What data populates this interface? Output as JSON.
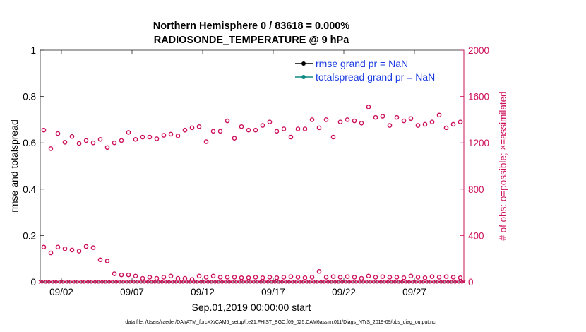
{
  "chart_data": {
    "type": "scatter",
    "title_lines": [
      "Northern Hemisphere 0 / 83618 = 0.000%",
      "RADIOSONDE_TEMPERATURE @ 9 hPa"
    ],
    "xlabel": "Sep.01,2019 00:00:00 start",
    "ylabel_left": "rmse and totalspread",
    "ylabel_right": "# of obs: o=possible; ×=assimilated",
    "footer": "data file: /Users/raeder/DAI/ATM_forcXX/CAM6_setup/f.e21.FHIST_BGC.f09_025.CAM6assim.011/Diags_NTrS_2019-09/obs_diag_output.nc",
    "ylim_left": [
      0,
      1
    ],
    "ylim_right": [
      0,
      2000
    ],
    "xlim": [
      0.5,
      30.5
    ],
    "left_ticks": [
      {
        "v": 0,
        "label": "0"
      },
      {
        "v": 0.2,
        "label": "0.2"
      },
      {
        "v": 0.4,
        "label": "0.4"
      },
      {
        "v": 0.6,
        "label": "0.6"
      },
      {
        "v": 0.8,
        "label": "0.8"
      },
      {
        "v": 1,
        "label": "1"
      }
    ],
    "right_ticks": [
      {
        "v": 0,
        "label": "0"
      },
      {
        "v": 400,
        "label": "400"
      },
      {
        "v": 800,
        "label": "800"
      },
      {
        "v": 1200,
        "label": "1200"
      },
      {
        "v": 1600,
        "label": "1600"
      },
      {
        "v": 2000,
        "label": "2000"
      }
    ],
    "x_ticks": [
      {
        "v": 2,
        "label": "09/02"
      },
      {
        "v": 7,
        "label": "09/07"
      },
      {
        "v": 12,
        "label": "09/12"
      },
      {
        "v": 17,
        "label": "09/17"
      },
      {
        "v": 22,
        "label": "09/22"
      },
      {
        "v": 27,
        "label": "09/27"
      }
    ],
    "legend": [
      {
        "label": "rmse grand pr = NaN",
        "color": "#000000"
      },
      {
        "label": "totalspread grand pr = NaN",
        "color": "#118a84"
      }
    ],
    "obs_color": "#cc0f5a",
    "x": [
      0.75,
      1.25,
      1.75,
      2.25,
      2.75,
      3.25,
      3.75,
      4.25,
      4.75,
      5.25,
      5.75,
      6.25,
      6.75,
      7.25,
      7.75,
      8.25,
      8.75,
      9.25,
      9.75,
      10.25,
      10.75,
      11.25,
      11.75,
      12.25,
      12.75,
      13.25,
      13.75,
      14.25,
      14.75,
      15.25,
      15.75,
      16.25,
      16.75,
      17.25,
      17.75,
      18.25,
      18.75,
      19.25,
      19.75,
      20.25,
      20.75,
      21.25,
      21.75,
      22.25,
      22.75,
      23.25,
      23.75,
      24.25,
      24.75,
      25.25,
      25.75,
      26.25,
      26.75,
      27.25,
      27.75,
      28.25,
      28.75,
      29.25,
      29.75,
      30.25
    ],
    "possible_obs_upper": [
      1310,
      1150,
      1280,
      1205,
      1255,
      1195,
      1220,
      1200,
      1230,
      1160,
      1200,
      1220,
      1290,
      1230,
      1250,
      1250,
      1235,
      1265,
      1275,
      1260,
      1310,
      1330,
      1340,
      1210,
      1300,
      1300,
      1390,
      1240,
      1340,
      1310,
      1310,
      1350,
      1380,
      1300,
      1320,
      1250,
      1320,
      1320,
      1400,
      1330,
      1400,
      1250,
      1380,
      1400,
      1390,
      1370,
      1510,
      1420,
      1430,
      1350,
      1420,
      1390,
      1410,
      1350,
      1360,
      1380,
      1440,
      1330,
      1360,
      1380
    ],
    "possible_obs_lower": [
      300,
      250,
      300,
      285,
      275,
      265,
      305,
      295,
      190,
      180,
      70,
      60,
      60,
      50,
      30,
      40,
      30,
      40,
      50,
      30,
      30,
      20,
      50,
      40,
      50,
      40,
      40,
      40,
      35,
      35,
      40,
      35,
      40,
      35,
      40,
      45,
      40,
      35,
      40,
      90,
      40,
      45,
      40,
      45,
      40,
      30,
      50,
      40,
      45,
      40,
      40,
      35,
      50,
      40,
      35,
      45,
      40,
      45,
      40,
      35
    ],
    "assimilated_obs": [
      0,
      0,
      0,
      0,
      0,
      0,
      0,
      0,
      0,
      0,
      0,
      0,
      0,
      0,
      0,
      0,
      0,
      0,
      0,
      0,
      0,
      0,
      0,
      0,
      0,
      0,
      0,
      0,
      0,
      0,
      0,
      0,
      0,
      0,
      0,
      0,
      0,
      0,
      0,
      0,
      0,
      0,
      0,
      0,
      0,
      0,
      0,
      0,
      0,
      0,
      0,
      0,
      0,
      0,
      0,
      0,
      0,
      0,
      0,
      0
    ]
  }
}
